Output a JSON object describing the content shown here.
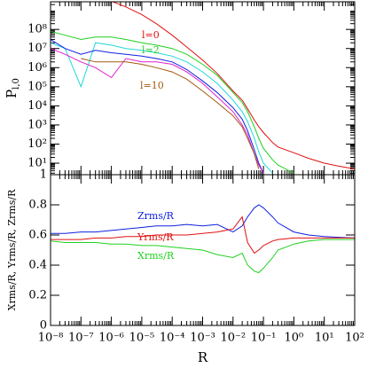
{
  "chart_data": [
    {
      "type": "line",
      "xscale": "log",
      "yscale": "log",
      "ylabel": "P",
      "ylabel_sub": "l,0",
      "x": [
        1e-08,
        3e-08,
        1e-07,
        3e-07,
        1e-06,
        3e-06,
        1e-05,
        3e-05,
        0.0001,
        0.0003,
        0.001,
        0.003,
        0.01,
        0.02,
        0.03,
        0.05,
        0.07,
        0.1,
        0.2,
        0.3,
        1,
        3,
        10,
        30,
        100
      ],
      "xlim": [
        1e-08,
        100
      ],
      "xticks": [
        1e-08,
        1e-07,
        1e-06,
        1e-05,
        0.0001,
        0.001,
        0.01,
        0.1,
        1,
        10,
        100
      ],
      "ylim": [
        2.5,
        2800000000.0
      ],
      "yticks": [
        {
          "value": 10,
          "label": "10¹"
        },
        {
          "value": 100,
          "label": "10²"
        },
        {
          "value": 1000,
          "label": "10³"
        },
        {
          "value": 10000,
          "label": "10⁴"
        },
        {
          "value": 100000,
          "label": "10⁵"
        },
        {
          "value": 1000000,
          "label": "10⁶"
        },
        {
          "value": 10000000,
          "label": "10⁷"
        },
        {
          "value": 100000000,
          "label": "10⁸"
        }
      ],
      "series": [
        {
          "name": "l=0",
          "color": "#e01010",
          "values": [
            null,
            null,
            null,
            null,
            3000000000.0,
            1500000000.0,
            600000000.0,
            200000000.0,
            50000000.0,
            12000000.0,
            2500000.0,
            500000.0,
            60000.0,
            20000.0,
            7000.0,
            1800.0,
            800.0,
            400.0,
            120.0,
            70,
            35,
            18,
            10,
            7,
            5
          ]
        },
        {
          "name": "l=2",
          "color": "#20d020",
          "values": [
            80000000.0,
            50000000.0,
            30000000.0,
            40000000.0,
            40000000.0,
            30000000.0,
            20000000.0,
            15000000.0,
            10000000.0,
            5000000.0,
            1500000.0,
            400000.0,
            50000.0,
            15000.0,
            5000.0,
            800.0,
            200.0,
            60,
            15,
            8,
            3,
            null,
            null,
            null,
            null
          ]
        },
        {
          "color": "#20d8d8",
          "values": [
            20000000.0,
            10000000.0,
            100000.0,
            20000000.0,
            15000000.0,
            10000000.0,
            8000000.0,
            6000000.0,
            4000000.0,
            2000000.0,
            600000.0,
            150000.0,
            20000.0,
            5000.0,
            1500.0,
            200.0,
            40,
            10,
            3,
            null,
            null,
            null,
            null,
            null,
            null
          ]
        },
        {
          "color": "#1020e0",
          "values": [
            30000000.0,
            10000000.0,
            5000000.0,
            8000000.0,
            6000000.0,
            5000000.0,
            4000000.0,
            3000000.0,
            2000000.0,
            800000.0,
            200000.0,
            50000.0,
            8000.0,
            2000.0,
            500.0,
            50,
            10,
            3,
            null,
            null,
            null,
            null,
            null,
            null,
            null
          ]
        },
        {
          "color": "#e020d0",
          "values": [
            10000000.0,
            5000000.0,
            2000000.0,
            1000000.0,
            300000.0,
            3000000.0,
            2000000.0,
            2000000.0,
            1500000.0,
            600000.0,
            150000.0,
            30000.0,
            5000.0,
            1000.0,
            300.0,
            30,
            8,
            3,
            null,
            null,
            null,
            null,
            null,
            null,
            null
          ]
        },
        {
          "name": "l=10",
          "color": "#a05a10",
          "values": [
            null,
            null,
            3000000.0,
            2000000.0,
            2000000.0,
            2000000.0,
            1500000.0,
            1000000.0,
            600000.0,
            250000.0,
            60000.0,
            15000.0,
            3000.0,
            800.0,
            200.0,
            30,
            5,
            null,
            null,
            null,
            null,
            null,
            null,
            null,
            null
          ]
        }
      ]
    },
    {
      "type": "line",
      "xscale": "log",
      "xlabel": "R",
      "ylabel": "Xrms/R, Yrms/R, Zrms/R",
      "x": [
        1e-08,
        3e-08,
        1e-07,
        3e-07,
        1e-06,
        3e-06,
        1e-05,
        3e-05,
        0.0001,
        0.0003,
        0.001,
        0.003,
        0.01,
        0.02,
        0.03,
        0.05,
        0.07,
        0.1,
        0.2,
        0.3,
        1,
        3,
        10,
        30,
        100
      ],
      "xlim": [
        1e-08,
        100
      ],
      "xticks": [
        {
          "value": 1e-08,
          "label": "10⁻⁸"
        },
        {
          "value": 1e-07,
          "label": "10⁻⁷"
        },
        {
          "value": 1e-06,
          "label": "10⁻⁶"
        },
        {
          "value": 1e-05,
          "label": "10⁻⁵"
        },
        {
          "value": 0.0001,
          "label": "10⁻⁴"
        },
        {
          "value": 0.001,
          "label": "10⁻³"
        },
        {
          "value": 0.01,
          "label": "10⁻²"
        },
        {
          "value": 0.1,
          "label": "10⁻¹"
        },
        {
          "value": 1,
          "label": "10⁰"
        },
        {
          "value": 10,
          "label": "10¹"
        },
        {
          "value": 100,
          "label": "10²"
        }
      ],
      "ylim": [
        0,
        1
      ],
      "yticks": [
        0,
        0.2,
        0.4,
        0.6,
        0.8,
        1
      ],
      "series": [
        {
          "name": "Zrms/R",
          "color": "#1020e0",
          "values": [
            0.61,
            0.61,
            0.62,
            0.62,
            0.63,
            0.64,
            0.65,
            0.66,
            0.66,
            0.67,
            0.66,
            0.67,
            0.62,
            0.66,
            0.72,
            0.78,
            0.8,
            0.78,
            0.72,
            0.68,
            0.62,
            0.6,
            0.59,
            0.585,
            0.58
          ]
        },
        {
          "name": "Yrms/R",
          "color": "#e01010",
          "values": [
            0.57,
            0.57,
            0.57,
            0.58,
            0.58,
            0.59,
            0.59,
            0.6,
            0.6,
            0.6,
            0.61,
            0.62,
            0.64,
            0.72,
            0.55,
            0.48,
            0.5,
            0.53,
            0.56,
            0.57,
            0.58,
            0.58,
            0.58,
            0.58,
            0.58
          ]
        },
        {
          "name": "Xrms/R",
          "color": "#20d020",
          "values": [
            0.56,
            0.55,
            0.55,
            0.55,
            0.54,
            0.54,
            0.53,
            0.53,
            0.52,
            0.51,
            0.5,
            0.47,
            0.45,
            0.48,
            0.4,
            0.36,
            0.35,
            0.38,
            0.45,
            0.5,
            0.54,
            0.56,
            0.57,
            0.57,
            0.57
          ]
        }
      ]
    }
  ]
}
